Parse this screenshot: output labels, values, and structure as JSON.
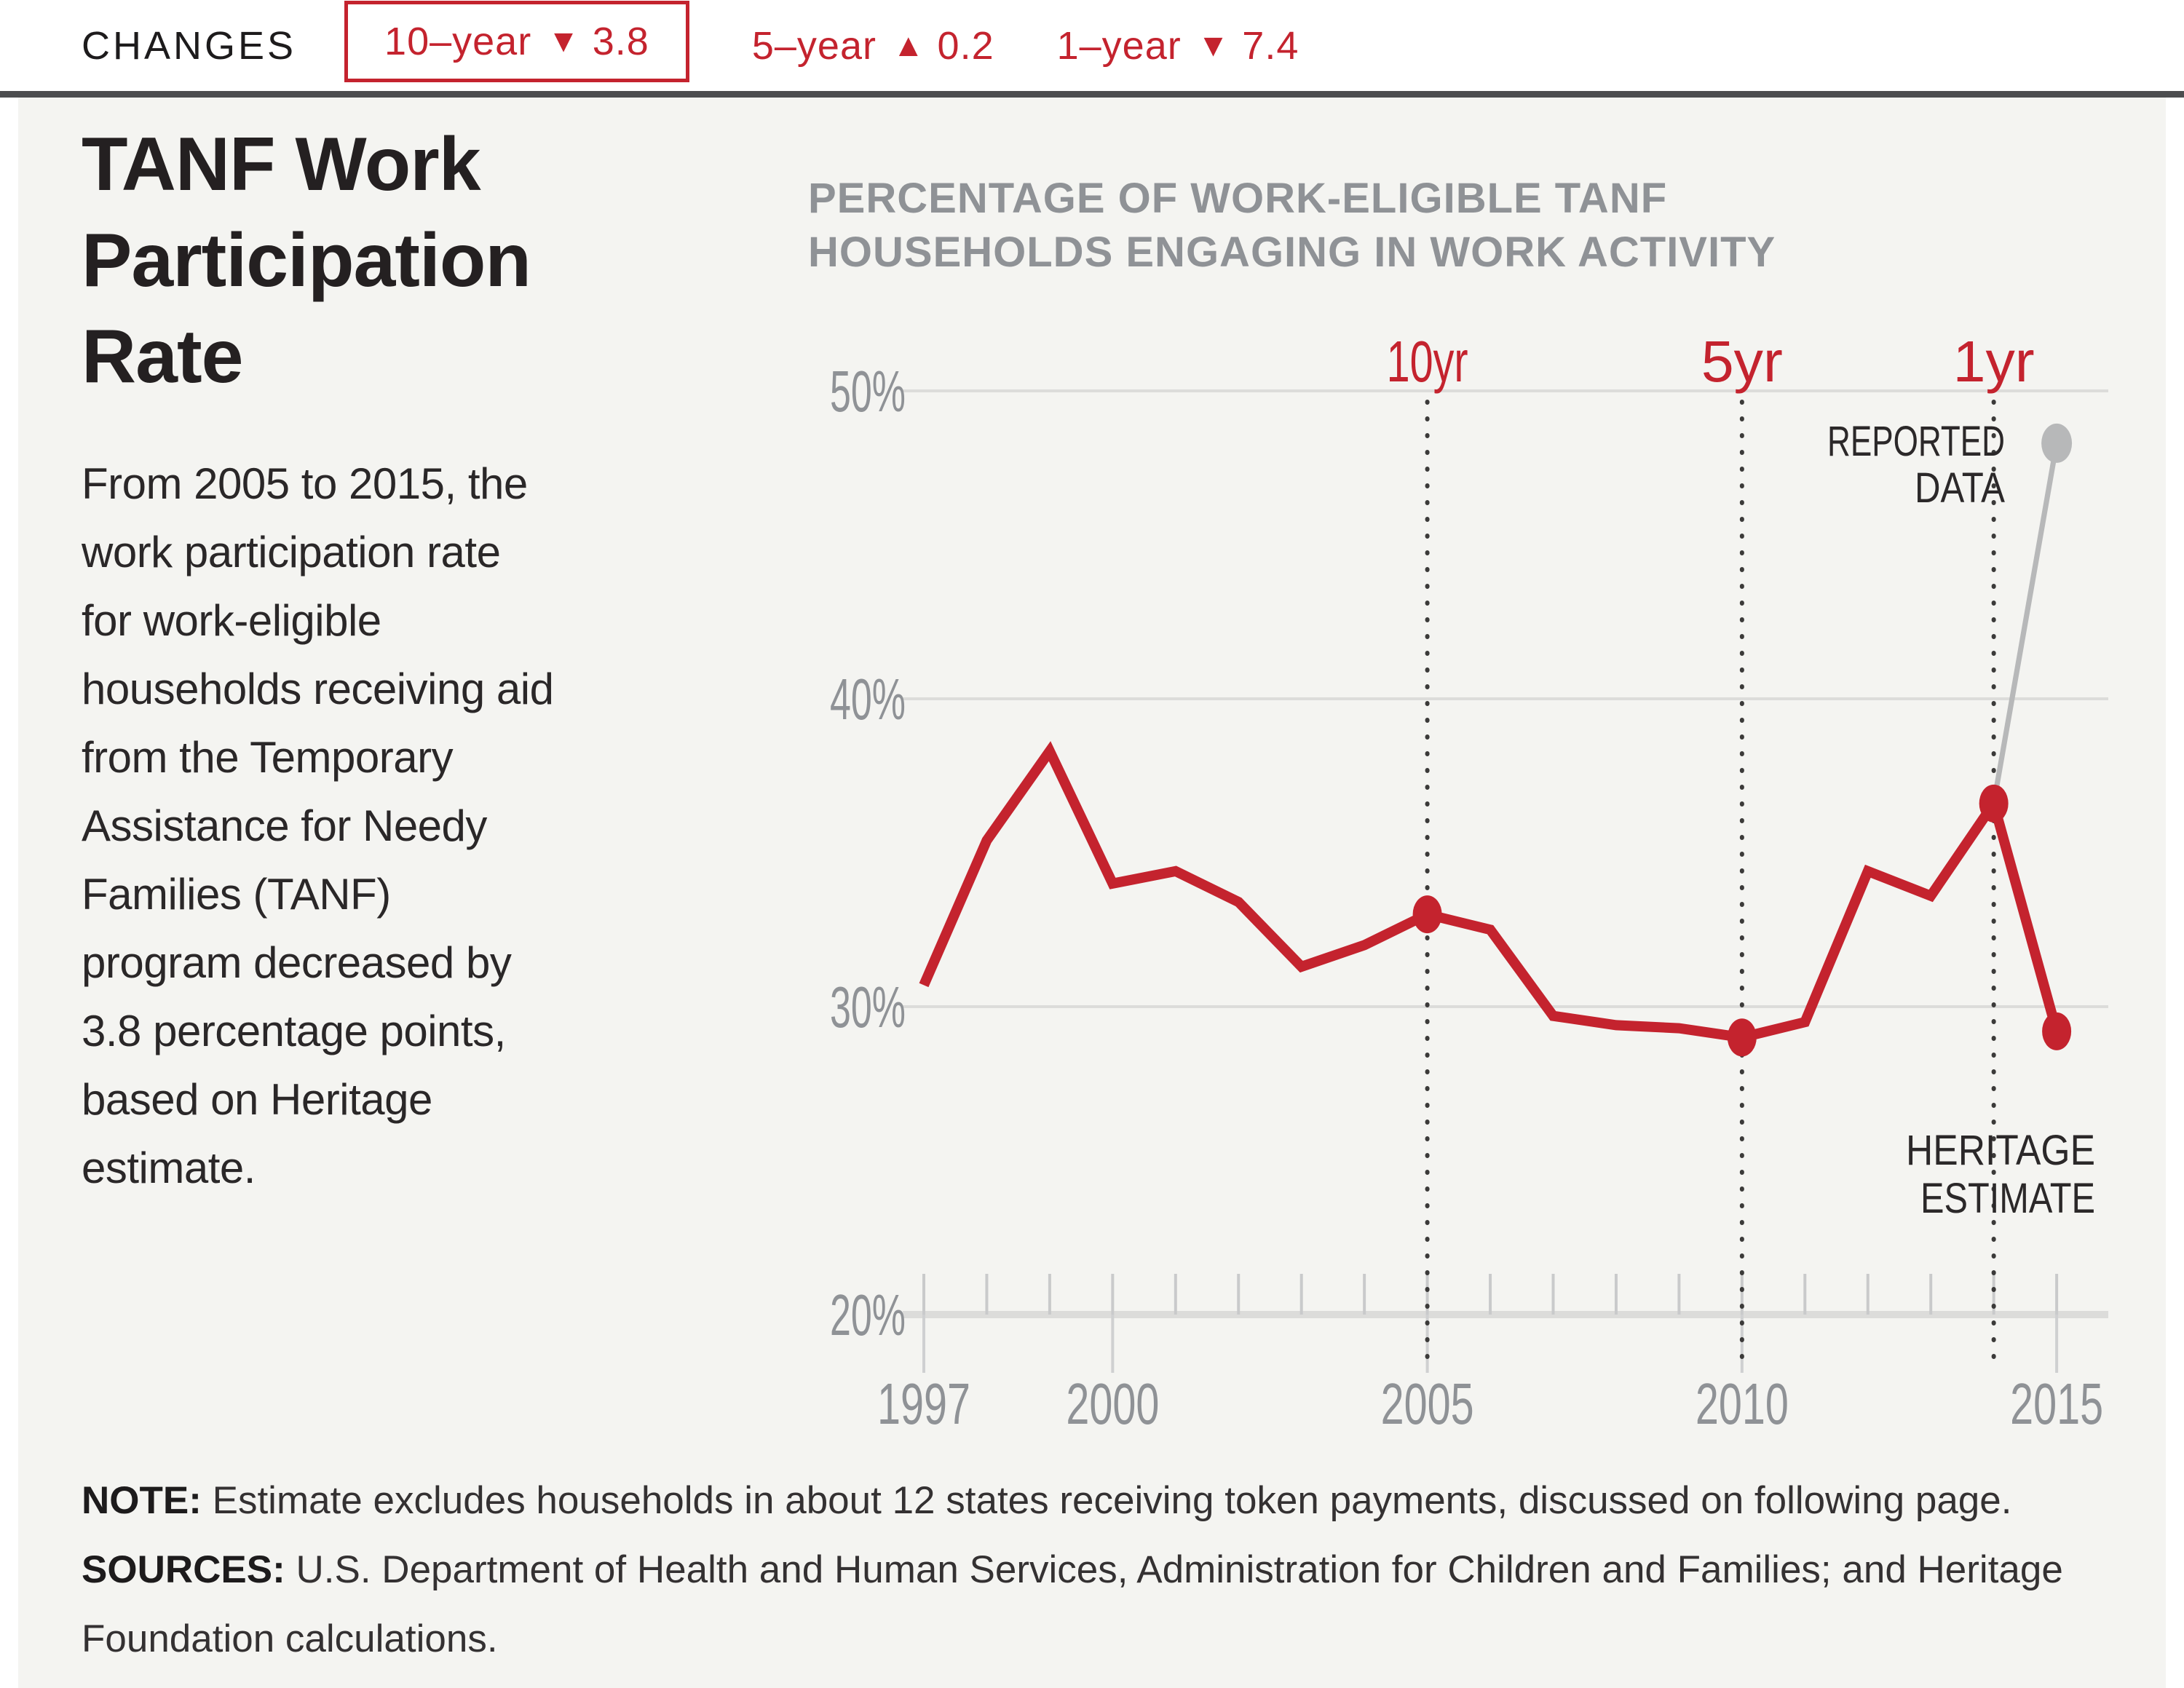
{
  "changes_bar": {
    "label": "CHANGES",
    "items": [
      {
        "period": "10–year",
        "direction": "down",
        "value": "3.8",
        "boxed": true
      },
      {
        "period": "5–year",
        "direction": "up",
        "value": "0.2",
        "boxed": false
      },
      {
        "period": "1–year",
        "direction": "down",
        "value": "7.4",
        "boxed": false
      }
    ]
  },
  "sidebar": {
    "title": "TANF Work Participation Rate",
    "description": "From 2005 to 2015, the work participation rate for work-eligible households receiving aid from the Temporary Assistance for Needy Families (TANF) program decreased by 3.8 percentage points, based on Heritage estimate."
  },
  "chart_data": {
    "type": "line",
    "title_lines": [
      "PERCENTAGE OF WORK-ELIGIBLE TANF",
      "HOUSEHOLDS ENGAGING IN WORK ACTIVITY"
    ],
    "x": [
      1997,
      1998,
      1999,
      2000,
      2001,
      2002,
      2003,
      2004,
      2005,
      2006,
      2007,
      2008,
      2009,
      2010,
      2011,
      2012,
      2013,
      2014,
      2015
    ],
    "series": [
      {
        "name": "Heritage estimate",
        "color": "#c4232e",
        "values": [
          30.7,
          35.4,
          38.3,
          34.0,
          34.4,
          33.4,
          31.3,
          32.0,
          33.0,
          32.5,
          29.7,
          29.4,
          29.3,
          29.0,
          29.5,
          34.4,
          33.6,
          36.6,
          29.2
        ]
      },
      {
        "name": "Reported data",
        "color": "#b7b8b9",
        "x": [
          2014,
          2015
        ],
        "values": [
          36.6,
          48.3
        ]
      }
    ],
    "ylim": [
      20,
      50
    ],
    "yticks": [
      {
        "value": 50,
        "label": "50%"
      },
      {
        "value": 40,
        "label": "40%"
      },
      {
        "value": 30,
        "label": "30%"
      },
      {
        "value": 20,
        "label": "20%"
      }
    ],
    "xticks": [
      {
        "year": 1997,
        "label": "1997"
      },
      {
        "year": 2000,
        "label": "2000"
      },
      {
        "year": 2005,
        "label": "2005"
      },
      {
        "year": 2010,
        "label": "2010"
      },
      {
        "year": 2015,
        "label": "2015"
      }
    ],
    "grid": true,
    "legend_position": "none",
    "markers": [
      {
        "label": "10yr",
        "year": 2005
      },
      {
        "label": "5yr",
        "year": 2010
      },
      {
        "label": "1yr",
        "year": 2014
      }
    ],
    "dot_years": [
      2005,
      2010,
      2014,
      2015
    ],
    "annotations": [
      {
        "id": "reported",
        "lines": [
          "REPORTED",
          "DATA"
        ]
      },
      {
        "id": "heritage",
        "lines": [
          "HERITAGE",
          "ESTIMATE"
        ]
      }
    ]
  },
  "footer": {
    "note_label": "NOTE:",
    "note": "Estimate excludes households in about 12 states receiving token payments, discussed on following page.",
    "sources_label": "SOURCES:",
    "sources": "U.S. Department of Health and Human Services, Administration for Children and Families; and Heritage Foundation calculations."
  },
  "colors": {
    "accent_red": "#c4232e",
    "reported_gray": "#b7b8b9",
    "axis_gray": "#8f9296",
    "text_dark": "#231f20",
    "panel_bg": "#f4f4f1",
    "grid_line": "#dcdcda"
  }
}
